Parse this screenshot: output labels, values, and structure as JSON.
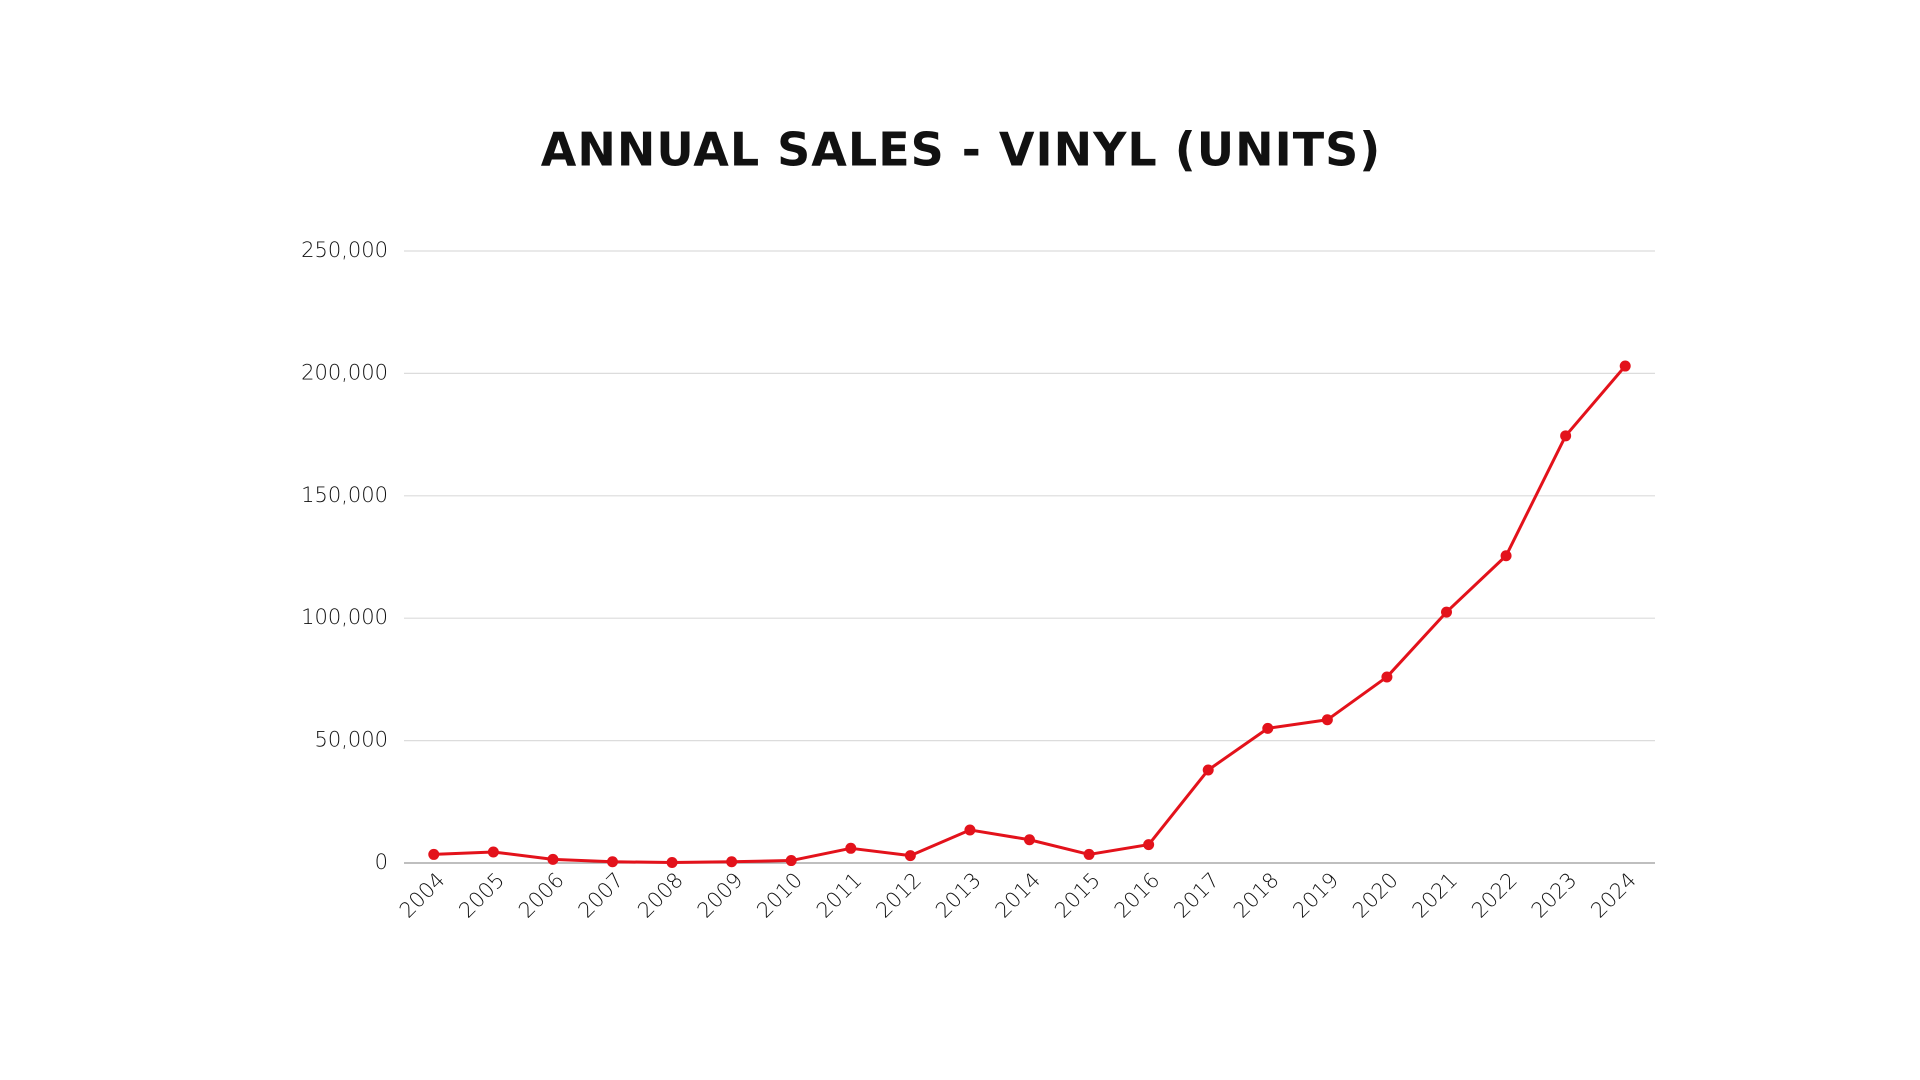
{
  "chart_data": {
    "type": "line",
    "title": "ANNUAL SALES - VINYL (UNITS)",
    "categories": [
      "2004",
      "2005",
      "2006",
      "2007",
      "2008",
      "2009",
      "2010",
      "2011",
      "2012",
      "2013",
      "2014",
      "2015",
      "2016",
      "2017",
      "2018",
      "2019",
      "2020",
      "2021",
      "2022",
      "2023",
      "2024"
    ],
    "series": [
      {
        "name": "Vinyl",
        "color": "#e3121b",
        "values": [
          3500,
          4500,
          1500,
          500,
          200,
          500,
          1000,
          6000,
          3000,
          13500,
          9500,
          3500,
          7500,
          38000,
          55000,
          58500,
          76000,
          102500,
          125500,
          174500,
          203000
        ]
      }
    ],
    "ylim": [
      0,
      250000
    ],
    "yticks": [
      0,
      {
        "value": 50000,
        "label": "50,000"
      },
      {
        "value": 100000,
        "label": "100,000"
      },
      {
        "value": 150000,
        "label": "150,000"
      },
      {
        "value": 200000,
        "label": "200,000"
      },
      {
        "value": 250000,
        "label": "250,000"
      }
    ],
    "grid": true
  }
}
